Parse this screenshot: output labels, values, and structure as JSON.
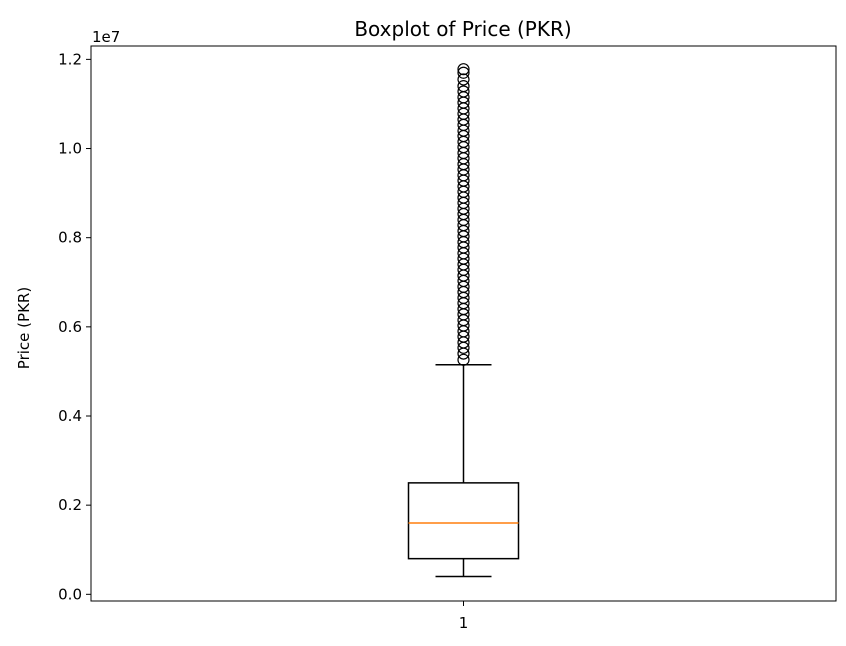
{
  "chart_data": {
    "type": "boxplot",
    "title": "Boxplot of Price (PKR)",
    "xlabel": "",
    "ylabel": "Price (PKR)",
    "offset_label": "1e7",
    "y_scale_factor": 10000000,
    "ylim": [
      -0.015,
      1.23
    ],
    "yticks": [
      0.0,
      0.2,
      0.4,
      0.6,
      0.8,
      1.0,
      1.2
    ],
    "ytick_labels": [
      "0.0",
      "0.2",
      "0.4",
      "0.6",
      "0.8",
      "1.0",
      "1.2"
    ],
    "categories": [
      "1"
    ],
    "grid": false,
    "colors": {
      "box": "#000000",
      "median": "#ff7f0e",
      "flier_edge": "#000000",
      "flier_fill": "none"
    },
    "box": {
      "whisker_low": 0.04,
      "q1": 0.08,
      "median": 0.16,
      "q3": 0.25,
      "whisker_high": 0.515
    },
    "outliers": [
      0.526,
      0.54,
      0.553,
      0.565,
      0.578,
      0.59,
      0.603,
      0.615,
      0.628,
      0.64,
      0.653,
      0.665,
      0.678,
      0.69,
      0.703,
      0.715,
      0.728,
      0.74,
      0.753,
      0.765,
      0.778,
      0.79,
      0.803,
      0.815,
      0.828,
      0.84,
      0.853,
      0.865,
      0.878,
      0.89,
      0.903,
      0.915,
      0.928,
      0.94,
      0.953,
      0.965,
      0.978,
      0.99,
      1.003,
      1.015,
      1.028,
      1.04,
      1.053,
      1.065,
      1.078,
      1.09,
      1.103,
      1.115,
      1.128,
      1.14,
      1.155,
      1.17,
      1.178
    ]
  }
}
